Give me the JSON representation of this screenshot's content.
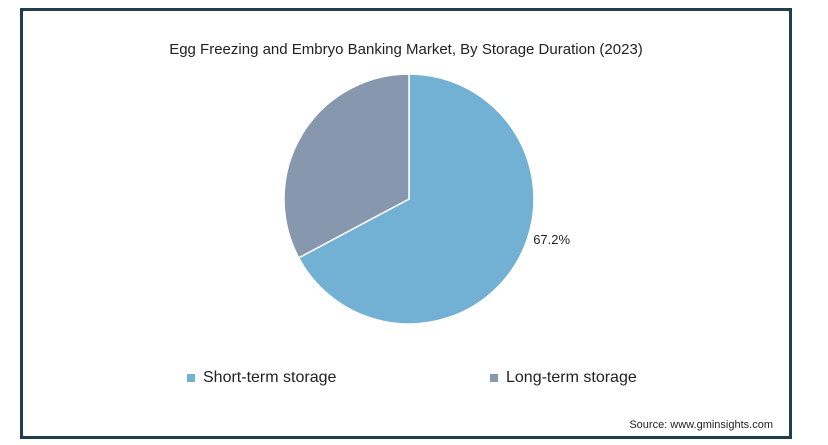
{
  "chart_data": {
    "type": "pie",
    "title": "Egg Freezing and Embryo Banking Market, By Storage Duration (2023)",
    "categories": [
      "Short-term storage",
      "Long-term storage"
    ],
    "values": [
      67.2,
      32.8
    ],
    "data_labels": [
      "67.2%",
      ""
    ],
    "colors": [
      "#72b0d4",
      "#8797ae"
    ],
    "legend_position": "bottom"
  },
  "source": "Source: www.gminsights.com"
}
